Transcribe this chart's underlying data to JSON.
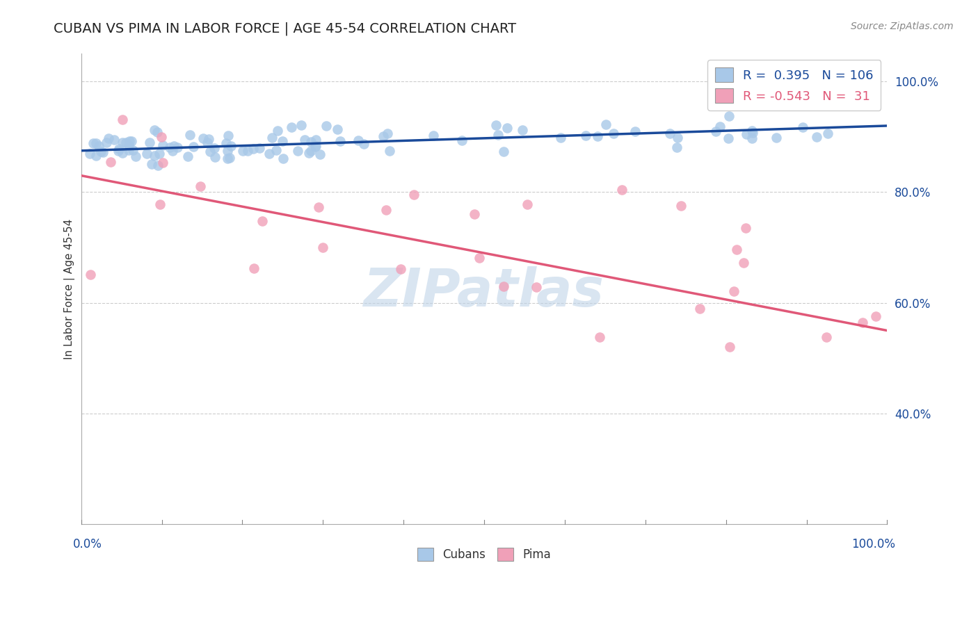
{
  "title": "CUBAN VS PIMA IN LABOR FORCE | AGE 45-54 CORRELATION CHART",
  "source_text": "Source: ZipAtlas.com",
  "ylabel": "In Labor Force | Age 45-54",
  "yticks": [
    40.0,
    60.0,
    80.0,
    100.0
  ],
  "ytick_labels": [
    "40.0%",
    "60.0%",
    "80.0%",
    "100.0%"
  ],
  "xmin": 0.0,
  "xmax": 100.0,
  "ymin": 20.0,
  "ymax": 105.0,
  "cubans_R": 0.395,
  "cubans_N": 106,
  "pima_R": -0.543,
  "pima_N": 31,
  "blue_color": "#a8c8e8",
  "blue_line_color": "#1a4a9a",
  "pink_color": "#f0a0b8",
  "pink_line_color": "#e05878",
  "watermark_text": "ZIPatlas",
  "watermark_color": "#c0d4e8",
  "title_color": "#222222",
  "title_fontsize": 14,
  "cubans_seed": 42,
  "pima_seed": 99,
  "grid_color": "#cccccc",
  "spine_color": "#aaaaaa"
}
